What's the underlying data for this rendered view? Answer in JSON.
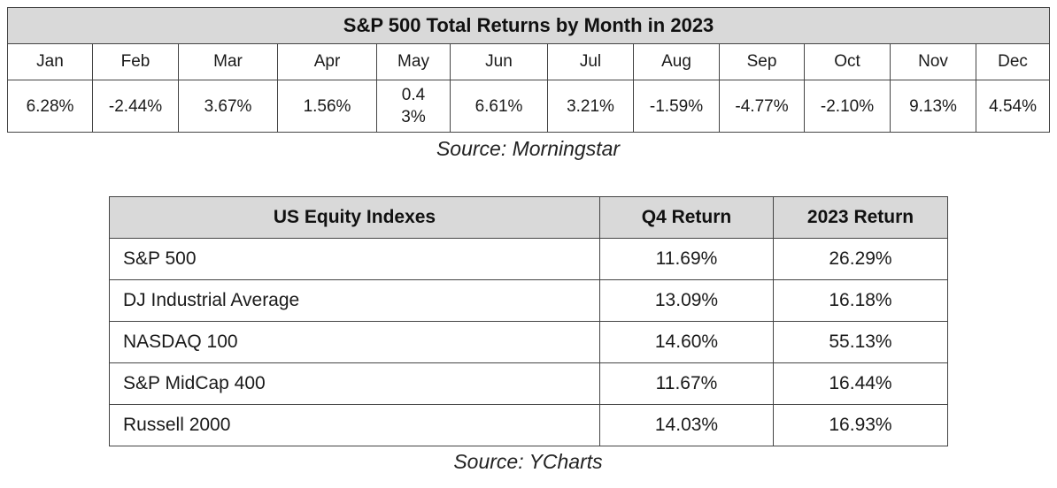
{
  "monthly_table": {
    "title": "S&P 500 Total Returns by Month in 2023",
    "months": [
      "Jan",
      "Feb",
      "Mar",
      "Apr",
      "May",
      "Jun",
      "Jul",
      "Aug",
      "Sep",
      "Oct",
      "Nov",
      "Dec"
    ],
    "returns": [
      "6.28%",
      "-2.44%",
      "3.67%",
      "1.56%",
      "0.43%",
      "6.61%",
      "3.21%",
      "-1.59%",
      "-4.77%",
      "-2.10%",
      "9.13%",
      "4.54%"
    ],
    "source": "Source: Morningstar"
  },
  "index_table": {
    "headers": [
      "US Equity Indexes",
      "Q4 Return",
      "2023 Return"
    ],
    "rows": [
      {
        "name": "S&P 500",
        "q4": "11.69%",
        "year": "26.29%"
      },
      {
        "name": "DJ Industrial Average",
        "q4": "13.09%",
        "year": "16.18%"
      },
      {
        "name": "NASDAQ 100",
        "q4": "14.60%",
        "year": "55.13%"
      },
      {
        "name": "S&P MidCap 400",
        "q4": "11.67%",
        "year": "16.44%"
      },
      {
        "name": "Russell 2000",
        "q4": "14.03%",
        "year": "16.93%"
      }
    ],
    "source": "Source: YCharts"
  },
  "colors": {
    "header_fill": "#d9d9d9",
    "border": "#444444",
    "text": "#1a1a1a"
  }
}
